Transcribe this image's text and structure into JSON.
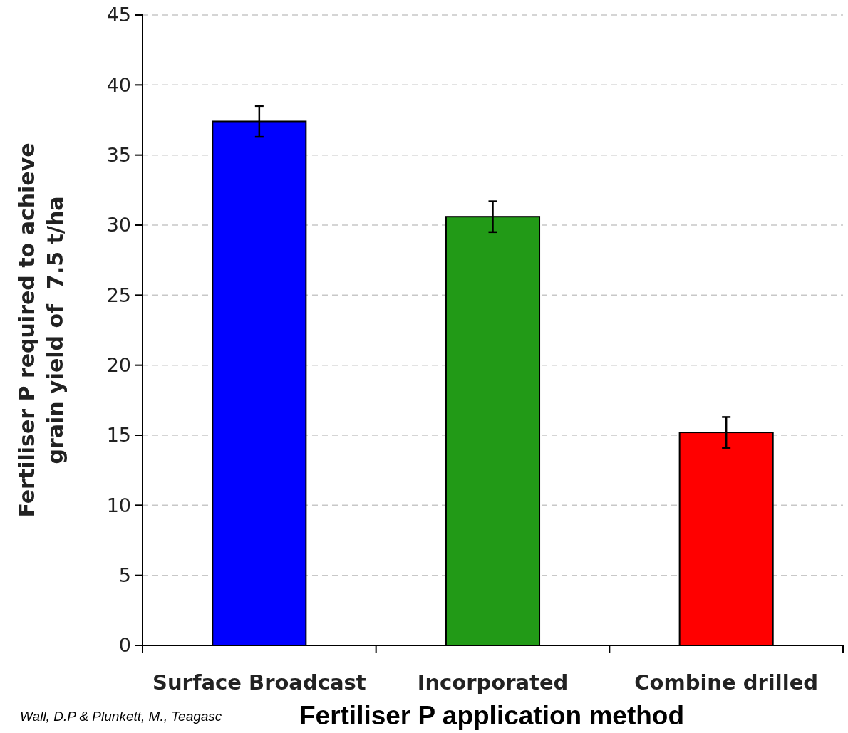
{
  "chart_data": {
    "type": "bar",
    "xlabel": "Fertiliser P application method",
    "ylabel": "Fertiliser P required to achieve grain yield of  7.5 t/ha",
    "categories": [
      "Surface Broadcast",
      "Incorporated",
      "Combine drilled"
    ],
    "values": [
      37.4,
      30.6,
      15.2
    ],
    "colors": [
      "#0000ff",
      "#229a17",
      "#ff0000"
    ],
    "errors": [
      1.1,
      1.1,
      1.1
    ],
    "ylim": [
      0,
      45
    ],
    "yticks": [
      0,
      5,
      10,
      15,
      20,
      25,
      30,
      35,
      40,
      45
    ],
    "grid": "y",
    "annotations": [
      "Wall, D.P & Plunkett, M., Teagasc"
    ]
  }
}
